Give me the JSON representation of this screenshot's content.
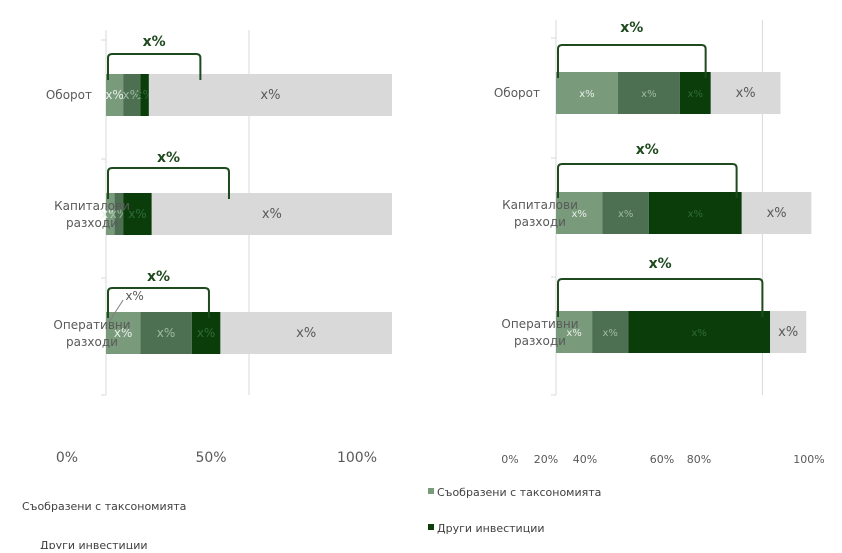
{
  "colors": {
    "seg1": "#7a9a7c",
    "seg2": "#4d6f52",
    "seg3": "#0b3d0b",
    "rest": "#d9d9d9",
    "bracket": "#1e4a1e",
    "bracket_label": "#1e4a1e",
    "grid": "#d9d9d9",
    "text": "#595959"
  },
  "chart_data": [
    {
      "type": "bar",
      "orientation": "horizontal",
      "stacked": true,
      "categories": [
        "Оборот",
        "Капиталови разходи",
        "Оперативни разходи"
      ],
      "series": [
        {
          "values": [
            6,
            3,
            12
          ]
        },
        {
          "values": [
            6,
            3,
            18
          ]
        },
        {
          "values": [
            3,
            10,
            10
          ]
        },
        {
          "values": [
            85,
            84,
            60
          ]
        }
      ],
      "segment_labels": [
        [
          "x%",
          "x%",
          "x%",
          "x%"
        ],
        [
          "x%",
          "x%",
          "x%",
          "x%"
        ],
        [
          "x%",
          "x%",
          "x%",
          "x%"
        ]
      ],
      "bracket_values": [
        33,
        43,
        36
      ],
      "bracket_labels": [
        "x%",
        "x%",
        "x%"
      ],
      "xlim": [
        0,
        100
      ],
      "xticks": [
        0,
        50,
        100
      ],
      "xtick_labels": [
        "0%",
        "50%",
        "100%"
      ],
      "legend": [
        "Съобразени с таксономията",
        "Други инвестиции"
      ],
      "legend_placement": "bottom-left",
      "grid": true
    },
    {
      "type": "bar",
      "orientation": "horizontal",
      "stacked": true,
      "categories": [
        "Оборот",
        "Капиталови разходи",
        "Оперативни разходи"
      ],
      "series": [
        {
          "values": [
            24,
            18,
            14
          ]
        },
        {
          "values": [
            24,
            18,
            14
          ]
        },
        {
          "values": [
            12,
            36,
            55
          ]
        },
        {
          "values": [
            27,
            27,
            14
          ]
        }
      ],
      "segment_labels": [
        [
          "x%",
          "x%",
          "x%",
          "x%"
        ],
        [
          "x%",
          "x%",
          "x%",
          "x%"
        ],
        [
          "x%",
          "x%",
          "x%",
          "x%"
        ]
      ],
      "bracket_values": [
        58,
        70,
        80
      ],
      "bracket_labels": [
        "x%",
        "x%",
        "x%"
      ],
      "xlim": [
        0,
        100
      ],
      "xticks": [
        0,
        20,
        40,
        60,
        80,
        100
      ],
      "xtick_labels": [
        "0%",
        "20%",
        "40%",
        "60%",
        "80%",
        "100%"
      ],
      "legend": [
        "Съобразени с таксономията",
        "Други инвестиции"
      ],
      "legend_placement": "bottom-left",
      "grid": true
    }
  ]
}
